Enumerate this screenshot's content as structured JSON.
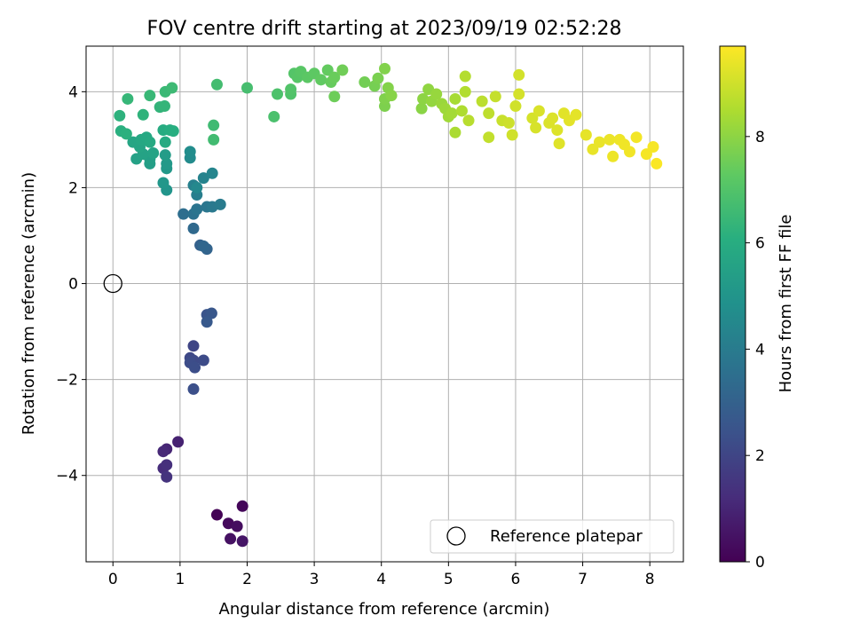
{
  "chart_data": {
    "type": "scatter",
    "title": "FOV centre drift starting at 2023/09/19 02:52:28",
    "xlabel": "Angular distance from reference (arcmin)",
    "ylabel": "Rotation from reference (arcmin)",
    "xlim": [
      -0.4,
      8.5
    ],
    "ylim": [
      -5.8,
      4.95
    ],
    "xticks": [
      0,
      1,
      2,
      3,
      4,
      5,
      6,
      7,
      8
    ],
    "xtick_labels": [
      "0",
      "1",
      "2",
      "3",
      "4",
      "5",
      "6",
      "7",
      "8"
    ],
    "yticks": [
      -4,
      -2,
      0,
      2,
      4
    ],
    "ytick_labels": [
      "−4",
      "−2",
      "0",
      "2",
      "4"
    ],
    "grid": true,
    "colormap": "viridis",
    "colorbar": {
      "label": "Hours from first FF file",
      "range": [
        0,
        9.7
      ],
      "ticks": [
        0,
        2,
        4,
        6,
        8
      ],
      "tick_labels": [
        "0",
        "2",
        "4",
        "6",
        "8"
      ]
    },
    "legend": {
      "placement": "lower-right",
      "entries": [
        "Reference platepar"
      ]
    },
    "reference_point": {
      "x": 0,
      "y": 0,
      "name": "Reference platepar"
    },
    "series": [
      {
        "points": [
          [
            1.55,
            -4.82,
            0.05
          ],
          [
            1.93,
            -4.64,
            0.15
          ],
          [
            1.72,
            -5.0,
            0.25
          ],
          [
            1.85,
            -5.06,
            0.35
          ],
          [
            1.75,
            -5.32,
            0.45
          ],
          [
            1.93,
            -5.37,
            0.55
          ],
          [
            0.97,
            -3.3,
            0.9
          ],
          [
            0.8,
            -3.45,
            1.0
          ],
          [
            0.75,
            -3.5,
            1.1
          ],
          [
            0.75,
            -3.85,
            1.2
          ],
          [
            0.8,
            -3.78,
            1.3
          ],
          [
            0.8,
            -4.03,
            1.4
          ],
          [
            1.2,
            -1.3,
            2.0
          ],
          [
            1.15,
            -1.55,
            2.1
          ],
          [
            1.2,
            -1.6,
            2.15
          ],
          [
            1.35,
            -1.6,
            2.2
          ],
          [
            1.15,
            -1.65,
            2.25
          ],
          [
            1.22,
            -1.75,
            2.3
          ],
          [
            1.2,
            -2.2,
            2.35
          ],
          [
            1.4,
            -0.65,
            2.5
          ],
          [
            1.47,
            -0.62,
            2.6
          ],
          [
            1.4,
            -0.8,
            2.7
          ],
          [
            1.3,
            0.8,
            3.0
          ],
          [
            1.4,
            0.72,
            3.1
          ],
          [
            1.35,
            0.78,
            3.2
          ],
          [
            1.2,
            1.15,
            3.3
          ],
          [
            1.05,
            1.45,
            3.5
          ],
          [
            1.2,
            1.45,
            3.6
          ],
          [
            1.25,
            1.55,
            3.7
          ],
          [
            1.4,
            1.6,
            3.8
          ],
          [
            1.48,
            1.6,
            3.9
          ],
          [
            1.6,
            1.65,
            4.0
          ],
          [
            1.25,
            1.85,
            4.1
          ],
          [
            1.2,
            2.05,
            4.2
          ],
          [
            1.35,
            2.2,
            4.3
          ],
          [
            1.48,
            2.3,
            4.4
          ],
          [
            1.25,
            2.0,
            4.5
          ],
          [
            1.15,
            2.62,
            4.6
          ],
          [
            1.15,
            2.75,
            4.7
          ],
          [
            0.8,
            1.95,
            5.0
          ],
          [
            0.75,
            2.1,
            5.1
          ],
          [
            0.8,
            2.4,
            5.15
          ],
          [
            0.8,
            2.5,
            5.2
          ],
          [
            0.78,
            2.68,
            5.3
          ],
          [
            0.55,
            2.5,
            5.4
          ],
          [
            0.55,
            2.6,
            5.45
          ],
          [
            0.35,
            2.6,
            5.5
          ],
          [
            0.45,
            2.7,
            5.55
          ],
          [
            0.6,
            2.72,
            5.6
          ],
          [
            0.4,
            2.85,
            5.65
          ],
          [
            0.3,
            2.95,
            5.7
          ],
          [
            0.42,
            3.0,
            5.75
          ],
          [
            0.5,
            3.05,
            5.8
          ],
          [
            0.55,
            2.95,
            5.85
          ],
          [
            0.78,
            2.95,
            5.9
          ],
          [
            0.75,
            3.2,
            5.95
          ],
          [
            0.85,
            3.2,
            6.0
          ],
          [
            0.9,
            3.18,
            6.05
          ],
          [
            0.12,
            3.18,
            6.1
          ],
          [
            0.2,
            3.12,
            6.15
          ],
          [
            0.1,
            3.5,
            6.2
          ],
          [
            0.45,
            3.52,
            6.25
          ],
          [
            0.7,
            3.68,
            6.3
          ],
          [
            0.77,
            3.7,
            6.35
          ],
          [
            0.22,
            3.85,
            6.4
          ],
          [
            0.55,
            3.92,
            6.45
          ],
          [
            0.78,
            4.0,
            6.5
          ],
          [
            0.88,
            4.08,
            6.55
          ],
          [
            1.5,
            3.3,
            6.6
          ],
          [
            1.5,
            3.0,
            6.65
          ],
          [
            1.55,
            4.15,
            6.7
          ],
          [
            2.0,
            4.08,
            6.75
          ],
          [
            2.4,
            3.48,
            6.85
          ],
          [
            2.45,
            3.95,
            6.9
          ],
          [
            2.65,
            3.95,
            6.95
          ],
          [
            2.65,
            4.05,
            7.0
          ],
          [
            2.7,
            4.38,
            7.05
          ],
          [
            2.75,
            4.3,
            7.1
          ],
          [
            2.8,
            4.42,
            7.15
          ],
          [
            2.9,
            4.3,
            7.2
          ],
          [
            3.0,
            4.38,
            7.25
          ],
          [
            3.1,
            4.25,
            7.3
          ],
          [
            3.2,
            4.45,
            7.35
          ],
          [
            3.25,
            4.2,
            7.4
          ],
          [
            3.3,
            4.3,
            7.45
          ],
          [
            3.3,
            3.9,
            7.5
          ],
          [
            3.42,
            4.45,
            7.55
          ],
          [
            3.75,
            4.2,
            7.6
          ],
          [
            3.9,
            4.12,
            7.65
          ],
          [
            3.95,
            4.28,
            7.7
          ],
          [
            4.05,
            3.7,
            7.75
          ],
          [
            4.05,
            3.85,
            7.8
          ],
          [
            4.05,
            4.48,
            7.82
          ],
          [
            4.1,
            4.08,
            7.85
          ],
          [
            4.15,
            3.92,
            7.9
          ],
          [
            4.6,
            3.65,
            7.95
          ],
          [
            4.62,
            3.85,
            8.0
          ],
          [
            4.7,
            4.05,
            8.05
          ],
          [
            4.75,
            3.8,
            8.1
          ],
          [
            4.82,
            3.95,
            8.15
          ],
          [
            4.9,
            3.75,
            8.2
          ],
          [
            4.95,
            3.65,
            8.25
          ],
          [
            5.0,
            3.48,
            8.3
          ],
          [
            5.05,
            3.55,
            8.35
          ],
          [
            5.1,
            3.85,
            8.4
          ],
          [
            5.1,
            3.15,
            8.45
          ],
          [
            5.2,
            3.6,
            8.5
          ],
          [
            5.25,
            4.0,
            8.55
          ],
          [
            5.25,
            4.32,
            8.6
          ],
          [
            5.3,
            3.4,
            8.65
          ],
          [
            5.5,
            3.8,
            8.7
          ],
          [
            5.6,
            3.55,
            8.75
          ],
          [
            5.6,
            3.05,
            8.8
          ],
          [
            5.7,
            3.9,
            8.85
          ],
          [
            5.8,
            3.4,
            8.9
          ],
          [
            5.9,
            3.35,
            8.95
          ],
          [
            5.95,
            3.1,
            9.0
          ],
          [
            6.0,
            3.7,
            9.02
          ],
          [
            6.05,
            4.35,
            9.05
          ],
          [
            6.05,
            3.95,
            9.08
          ],
          [
            6.25,
            3.45,
            9.1
          ],
          [
            6.3,
            3.25,
            9.12
          ],
          [
            6.35,
            3.6,
            9.15
          ],
          [
            6.5,
            3.35,
            9.18
          ],
          [
            6.55,
            3.45,
            9.2
          ],
          [
            6.62,
            3.2,
            9.22
          ],
          [
            6.65,
            2.92,
            9.25
          ],
          [
            6.72,
            3.55,
            9.28
          ],
          [
            6.8,
            3.4,
            9.3
          ],
          [
            6.9,
            3.52,
            9.32
          ],
          [
            7.05,
            3.1,
            9.35
          ],
          [
            7.15,
            2.8,
            9.38
          ],
          [
            7.25,
            2.95,
            9.4
          ],
          [
            7.4,
            3.0,
            9.42
          ],
          [
            7.45,
            2.65,
            9.45
          ],
          [
            7.55,
            3.0,
            9.48
          ],
          [
            7.62,
            2.9,
            9.5
          ],
          [
            7.7,
            2.75,
            9.52
          ],
          [
            7.8,
            3.05,
            9.55
          ],
          [
            7.95,
            2.7,
            9.58
          ],
          [
            8.05,
            2.85,
            9.6
          ],
          [
            8.1,
            2.5,
            9.65
          ]
        ]
      }
    ]
  }
}
